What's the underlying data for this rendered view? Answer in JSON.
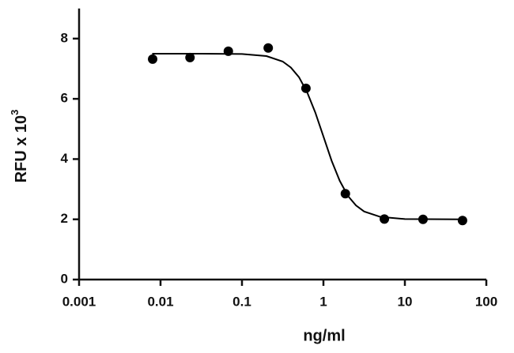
{
  "chart_data": {
    "type": "scatter",
    "xlabel": "ng/ml",
    "ylabel": "RFU x 10",
    "ylabel_superscript": "3",
    "x": [
      0.008,
      0.023,
      0.068,
      0.21,
      0.61,
      1.86,
      5.6,
      16.7,
      51
    ],
    "values": [
      7.32,
      7.37,
      7.58,
      7.69,
      6.35,
      2.85,
      2.01,
      2.0,
      1.96
    ],
    "color": "#000000",
    "fit": {
      "x": [
        0.0079,
        0.0316,
        0.1,
        0.2,
        0.316,
        0.398,
        0.501,
        0.631,
        0.794,
        1,
        1.259,
        1.585,
        1.995,
        2.512,
        3.162,
        5.012,
        10,
        50.1
      ],
      "y": [
        7.5,
        7.5,
        7.49,
        7.42,
        7.24,
        7.04,
        6.72,
        6.22,
        5.55,
        4.75,
        3.95,
        3.28,
        2.78,
        2.46,
        2.26,
        2.08,
        2.01,
        2.0
      ]
    },
    "xscale": "log",
    "xlim": [
      0.001,
      100
    ],
    "xticks": [
      0.001,
      0.01,
      0.1,
      1,
      10,
      100
    ],
    "ylim": [
      0,
      9
    ],
    "yticks": [
      0,
      2,
      4,
      6,
      8
    ]
  }
}
